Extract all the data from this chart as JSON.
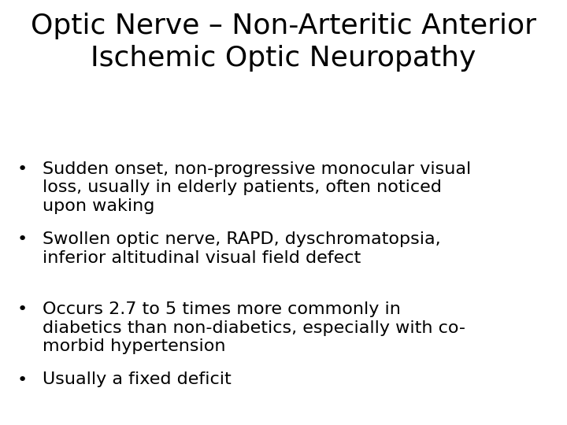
{
  "title_line1": "Optic Nerve – Non-Arteritic Anterior",
  "title_line2": "Ischemic Optic Neuropathy",
  "bullets": [
    "Sudden onset, non-progressive monocular visual\nloss, usually in elderly patients, often noticed\nupon waking",
    "Swollen optic nerve, RAPD, dyschromatopsia,\ninferior altitudinal visual field defect",
    "Occurs 2.7 to 5 times more commonly in\ndiabetics than non-diabetics, especially with co-\nmorbid hypertension",
    "Usually a fixed deficit"
  ],
  "background_color": "#ffffff",
  "text_color": "#000000",
  "title_fontsize": 26,
  "bullet_fontsize": 16,
  "font_family": "DejaVu Sans"
}
